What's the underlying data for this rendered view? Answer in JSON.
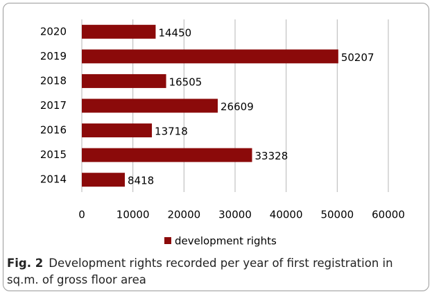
{
  "chart_data": {
    "type": "barh",
    "categories": [
      "2020",
      "2019",
      "2018",
      "2017",
      "2016",
      "2015",
      "2014"
    ],
    "series": [
      {
        "name": "development rights",
        "color": "#8b0a0a",
        "values": [
          14450,
          50207,
          16505,
          26609,
          13718,
          33328,
          8418
        ]
      }
    ],
    "xlim": [
      0,
      60000
    ],
    "xticks": [
      0,
      10000,
      20000,
      30000,
      40000,
      50000,
      60000
    ],
    "grid": true,
    "legend": "bottom"
  },
  "caption": {
    "label": "Fig. 2",
    "text": "Development rights recorded per year of first registration in sq.m. of gross floor area"
  }
}
